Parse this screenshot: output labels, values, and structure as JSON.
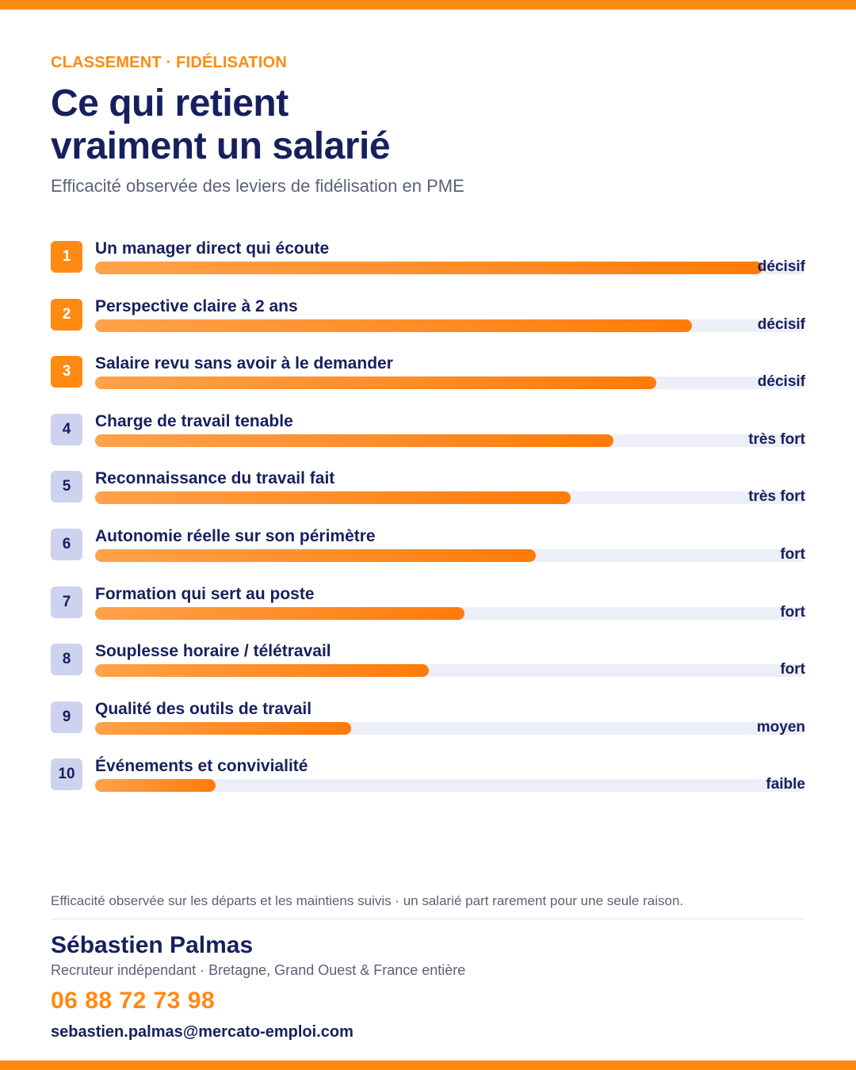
{
  "header": {
    "kicker": "CLASSEMENT · FIDÉLISATION",
    "title_line1": "Ce qui retient",
    "title_line2": "vraiment un salarié",
    "subtitle": "Efficacité observée des leviers de fidélisation en PME"
  },
  "chart_data": {
    "type": "bar",
    "orientation": "horizontal",
    "value_unit": "fraction of full bar",
    "xlim": [
      0,
      1
    ],
    "categories": [
      "Un manager direct qui écoute",
      "Perspective claire à 2 ans",
      "Salaire revu sans avoir à le demander",
      "Charge de travail tenable",
      "Reconnaissance du travail fait",
      "Autonomie réelle sur son périmètre",
      "Formation qui sert au poste",
      "Souplesse horaire / télétravail",
      "Qualité des outils de travail",
      "Événements et convivialité"
    ],
    "ranks": [
      "1",
      "2",
      "3",
      "4",
      "5",
      "6",
      "7",
      "8",
      "9",
      "10"
    ],
    "values": [
      0.94,
      0.84,
      0.79,
      0.73,
      0.67,
      0.62,
      0.52,
      0.47,
      0.36,
      0.17
    ],
    "levels": [
      "décisif",
      "décisif",
      "décisif",
      "très fort",
      "très fort",
      "fort",
      "fort",
      "fort",
      "moyen",
      "faible"
    ],
    "highlighted_top": 3,
    "colors": {
      "bar_start": "#ffa24a",
      "bar_end": "#ff7b0a",
      "track": "#eceff7",
      "rank_highlight": "#ff8a12",
      "rank_default": "#cdd2ee",
      "text": "#17205e"
    }
  },
  "footer": {
    "note": "Efficacité observée sur les départs et les maintiens suivis · un salarié part rarement pour une seule raison.",
    "name": "Sébastien Palmas",
    "role": "Recruteur indépendant · Bretagne, Grand Ouest & France entière",
    "phone": "06 88 72 73 98",
    "email": "sebastien.palmas@mercato-emploi.com"
  },
  "colors": {
    "accent": "#ff8a12",
    "navy": "#17205e",
    "muted": "#5b6278"
  }
}
